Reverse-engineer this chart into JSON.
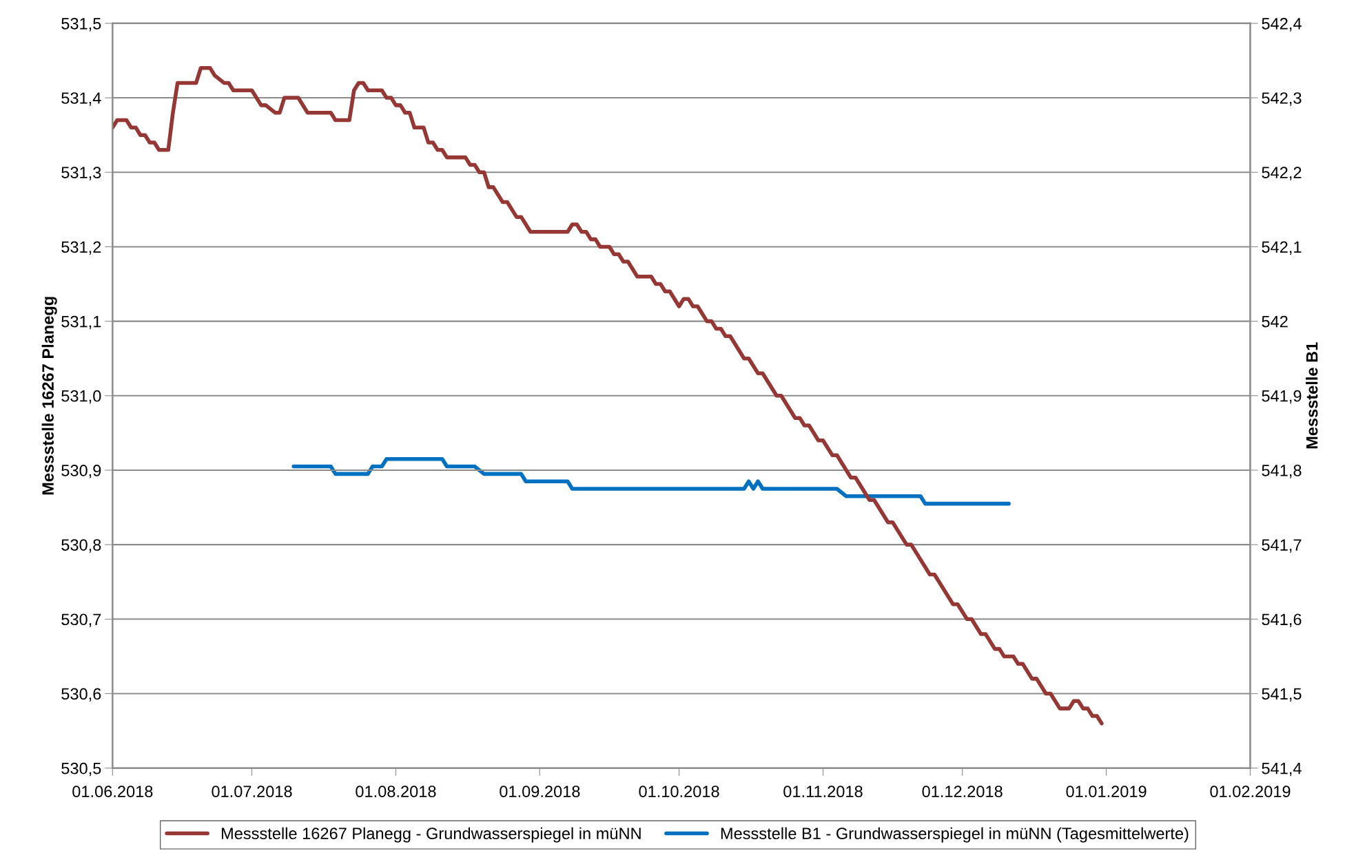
{
  "chart_data": {
    "type": "line",
    "ylabel": "Messstelle 16267 Planegg",
    "y2label": "Messstelle B1",
    "xlim": [
      "2018-06-01",
      "2019-02-01"
    ],
    "xticks": [
      {
        "value": "2018-06-01",
        "label": "01.06.2018"
      },
      {
        "value": "2018-07-01",
        "label": "01.07.2018"
      },
      {
        "value": "2018-08-01",
        "label": "01.08.2018"
      },
      {
        "value": "2018-09-01",
        "label": "01.09.2018"
      },
      {
        "value": "2018-10-01",
        "label": "01.10.2018"
      },
      {
        "value": "2018-11-01",
        "label": "01.11.2018"
      },
      {
        "value": "2018-12-01",
        "label": "01.12.2018"
      },
      {
        "value": "2019-01-01",
        "label": "01.01.2019"
      },
      {
        "value": "2019-02-01",
        "label": "01.02.2019"
      }
    ],
    "ylim": [
      530.5,
      531.5
    ],
    "yticks": [
      {
        "value": 530.5,
        "label": "530,5"
      },
      {
        "value": 530.6,
        "label": "530,6"
      },
      {
        "value": 530.7,
        "label": "530,7"
      },
      {
        "value": 530.8,
        "label": "530,8"
      },
      {
        "value": 530.9,
        "label": "530,9"
      },
      {
        "value": 531.0,
        "label": "531,0"
      },
      {
        "value": 531.1,
        "label": "531,1"
      },
      {
        "value": 531.2,
        "label": "531,2"
      },
      {
        "value": 531.3,
        "label": "531,3"
      },
      {
        "value": 531.4,
        "label": "531,4"
      },
      {
        "value": 531.5,
        "label": "531,5"
      }
    ],
    "y2lim": [
      541.4,
      542.4
    ],
    "y2ticks": [
      {
        "value": 541.4,
        "label": "541,4"
      },
      {
        "value": 541.5,
        "label": "541,5"
      },
      {
        "value": 541.6,
        "label": "541,6"
      },
      {
        "value": 541.7,
        "label": "541,7"
      },
      {
        "value": 541.8,
        "label": "541,8"
      },
      {
        "value": 541.9,
        "label": "541,9"
      },
      542,
      {
        "value": 542.1,
        "label": "542,1"
      },
      {
        "value": 542.2,
        "label": "542,2"
      },
      {
        "value": 542.3,
        "label": "542,3"
      },
      {
        "value": 542.4,
        "label": "542,4"
      }
    ],
    "grid": "y",
    "legend": "bottom",
    "marker": "none",
    "line_style": "solid",
    "series": [
      {
        "name": "Messstelle 16267 Planegg - Grundwasserspiegel in müNN",
        "color": "#953735",
        "x": [
          "2018-06-01",
          "2018-06-02",
          "2018-06-04",
          "2018-06-05",
          "2018-06-06",
          "2018-06-07",
          "2018-06-08",
          "2018-06-09",
          "2018-06-10",
          "2018-06-11",
          "2018-06-13",
          "2018-06-14",
          "2018-06-15",
          "2018-06-19",
          "2018-06-20",
          "2018-06-22",
          "2018-06-23",
          "2018-06-25",
          "2018-06-26",
          "2018-06-27",
          "2018-07-01",
          "2018-07-03",
          "2018-07-04",
          "2018-07-06",
          "2018-07-07",
          "2018-07-08",
          "2018-07-11",
          "2018-07-13",
          "2018-07-18",
          "2018-07-19",
          "2018-07-22",
          "2018-07-23",
          "2018-07-24",
          "2018-07-25",
          "2018-07-26",
          "2018-07-29",
          "2018-07-30",
          "2018-07-31",
          "2018-08-01",
          "2018-08-02",
          "2018-08-03",
          "2018-08-04",
          "2018-08-05",
          "2018-08-07",
          "2018-08-08",
          "2018-08-09",
          "2018-08-10",
          "2018-08-11",
          "2018-08-12",
          "2018-08-16",
          "2018-08-17",
          "2018-08-18",
          "2018-08-19",
          "2018-08-20",
          "2018-08-21",
          "2018-08-22",
          "2018-08-24",
          "2018-08-25",
          "2018-08-27",
          "2018-08-28",
          "2018-08-30",
          "2018-09-07",
          "2018-09-08",
          "2018-09-09",
          "2018-09-10",
          "2018-09-11",
          "2018-09-12",
          "2018-09-13",
          "2018-09-14",
          "2018-09-16",
          "2018-09-17",
          "2018-09-18",
          "2018-09-19",
          "2018-09-20",
          "2018-09-22",
          "2018-09-25",
          "2018-09-26",
          "2018-09-27",
          "2018-09-28",
          "2018-09-29",
          "2018-10-01",
          "2018-10-02",
          "2018-10-03",
          "2018-10-04",
          "2018-10-05",
          "2018-10-07",
          "2018-10-08",
          "2018-10-09",
          "2018-10-10",
          "2018-10-11",
          "2018-10-12",
          "2018-10-15",
          "2018-10-16",
          "2018-10-18",
          "2018-10-19",
          "2018-10-22",
          "2018-10-23",
          "2018-10-26",
          "2018-10-27",
          "2018-10-28",
          "2018-10-29",
          "2018-10-31",
          "2018-11-01",
          "2018-11-03",
          "2018-11-04",
          "2018-11-07",
          "2018-11-08",
          "2018-11-11",
          "2018-11-12",
          "2018-11-15",
          "2018-11-16",
          "2018-11-19",
          "2018-11-20",
          "2018-11-24",
          "2018-11-25",
          "2018-11-29",
          "2018-11-30",
          "2018-12-02",
          "2018-12-03",
          "2018-12-05",
          "2018-12-06",
          "2018-12-08",
          "2018-12-09",
          "2018-12-10",
          "2018-12-12",
          "2018-12-13",
          "2018-12-14",
          "2018-12-16",
          "2018-12-17",
          "2018-12-19",
          "2018-12-20",
          "2018-12-22",
          "2018-12-24",
          "2018-12-25",
          "2018-12-26",
          "2018-12-27",
          "2018-12-28",
          "2018-12-29",
          "2018-12-30",
          "2018-12-31"
        ],
        "values": [
          531.36,
          531.37,
          531.37,
          531.36,
          531.36,
          531.35,
          531.35,
          531.34,
          531.34,
          531.33,
          531.33,
          531.38,
          531.42,
          531.42,
          531.44,
          531.44,
          531.43,
          531.42,
          531.42,
          531.41,
          531.41,
          531.39,
          531.39,
          531.38,
          531.38,
          531.4,
          531.4,
          531.38,
          531.38,
          531.37,
          531.37,
          531.41,
          531.42,
          531.42,
          531.41,
          531.41,
          531.4,
          531.4,
          531.39,
          531.39,
          531.38,
          531.38,
          531.36,
          531.36,
          531.34,
          531.34,
          531.33,
          531.33,
          531.32,
          531.32,
          531.31,
          531.31,
          531.3,
          531.3,
          531.28,
          531.28,
          531.26,
          531.26,
          531.24,
          531.24,
          531.22,
          531.22,
          531.23,
          531.23,
          531.22,
          531.22,
          531.21,
          531.21,
          531.2,
          531.2,
          531.19,
          531.19,
          531.18,
          531.18,
          531.16,
          531.16,
          531.15,
          531.15,
          531.14,
          531.14,
          531.12,
          531.13,
          531.13,
          531.12,
          531.12,
          531.1,
          531.1,
          531.09,
          531.09,
          531.08,
          531.08,
          531.05,
          531.05,
          531.03,
          531.03,
          531.0,
          531.0,
          530.97,
          530.97,
          530.96,
          530.96,
          530.94,
          530.94,
          530.92,
          530.92,
          530.89,
          530.89,
          530.86,
          530.86,
          530.83,
          530.83,
          530.8,
          530.8,
          530.76,
          530.76,
          530.72,
          530.72,
          530.7,
          530.7,
          530.68,
          530.68,
          530.66,
          530.66,
          530.65,
          530.65,
          530.64,
          530.64,
          530.62,
          530.62,
          530.6,
          530.6,
          530.58,
          530.58,
          530.59,
          530.59,
          530.58,
          530.58,
          530.57,
          530.57,
          530.56
        ]
      },
      {
        "name": "Messstelle B1 - Grundwasserspiegel in müNN (Tagesmittelwerte)",
        "color": "#0070c0",
        "axis": "y2",
        "x": [
          "2018-07-10",
          "2018-07-18",
          "2018-07-19",
          "2018-07-26",
          "2018-07-27",
          "2018-07-29",
          "2018-07-30",
          "2018-08-11",
          "2018-08-12",
          "2018-08-18",
          "2018-08-20",
          "2018-08-28",
          "2018-08-29",
          "2018-09-07",
          "2018-09-08",
          "2018-10-15",
          "2018-10-16",
          "2018-10-17",
          "2018-10-18",
          "2018-10-19",
          "2018-11-04",
          "2018-11-06",
          "2018-11-22",
          "2018-11-23",
          "2018-12-11"
        ],
        "values": [
          541.805,
          541.805,
          541.795,
          541.795,
          541.805,
          541.805,
          541.815,
          541.815,
          541.805,
          541.805,
          541.795,
          541.795,
          541.785,
          541.785,
          541.775,
          541.775,
          541.785,
          541.775,
          541.785,
          541.775,
          541.775,
          541.765,
          541.765,
          541.755,
          541.755
        ]
      }
    ]
  }
}
